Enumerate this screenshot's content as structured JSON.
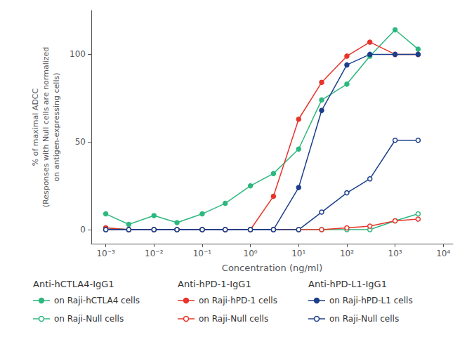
{
  "chart_data": {
    "type": "line",
    "xlabel": "Concentration (ng/ml)",
    "ylabel": "% of maximal ADCC\n(Responses with Null cells are normalized\non antigen-expressing cells)",
    "log": "x",
    "grid": false,
    "x": [
      0.001,
      0.003,
      0.01,
      0.03,
      0.1,
      0.3,
      1.0,
      3.0,
      10.0,
      30.0,
      100.0,
      300.0,
      1000.0,
      3000.0
    ],
    "xlim": [
      0.0005011872336272725,
      15848.931924611135
    ],
    "xticks": [
      {
        "value": 0.001,
        "label": "10⁻³"
      },
      {
        "value": 0.01,
        "label": "10⁻²"
      },
      {
        "value": 0.1,
        "label": "10⁻¹"
      },
      {
        "value": 1,
        "label": "10⁰"
      },
      {
        "value": 10,
        "label": "10¹"
      },
      {
        "value": 100,
        "label": "10²"
      },
      {
        "value": 1000,
        "label": "10³"
      },
      {
        "value": 10000,
        "label": "10⁴"
      }
    ],
    "ylim": [
      -8,
      125
    ],
    "yticks": [
      0,
      50,
      100
    ],
    "series": [
      {
        "name": "on Raji-hCTLA4 cells",
        "group": "Anti-hCTLA4-IgG1",
        "color": "#2db87e",
        "marker": "circle",
        "values": [
          9,
          3,
          8,
          4,
          9,
          15,
          25,
          32,
          46,
          74,
          83,
          99,
          114,
          103
        ]
      },
      {
        "name": "on Raji-Null cells",
        "group": "Anti-hCTLA4-IgG1",
        "color": "#2db87e",
        "marker": "open_circle",
        "values": [
          1,
          0,
          0,
          0,
          0,
          0,
          0,
          0,
          0,
          0,
          0,
          0,
          5,
          9
        ]
      },
      {
        "name": "on Raji-hPD-1 cells",
        "group": "Anti-hPD-1-IgG1",
        "color": "#e8342a",
        "marker": "circle",
        "values": [
          1,
          0,
          0,
          0,
          0,
          0,
          0,
          19,
          63,
          84,
          99,
          107,
          100,
          100
        ]
      },
      {
        "name": "on Raji-Null cells",
        "group": "Anti-hPD-1-IgG1",
        "color": "#e8342a",
        "marker": "open_circle",
        "values": [
          0,
          0,
          0,
          0,
          0,
          0,
          0,
          0,
          0,
          0,
          1,
          2,
          5,
          6
        ]
      },
      {
        "name": "on Raji-hPD-L1 cells",
        "group": "Anti-hPD-L1-IgG1",
        "color": "#1c3f8c",
        "marker": "circle",
        "values": [
          0,
          0,
          0,
          0,
          0,
          0,
          0,
          0,
          24,
          68,
          94,
          100,
          100,
          100
        ]
      },
      {
        "name": "on Raji-Null cells",
        "group": "Anti-hPD-L1-IgG1",
        "color": "#1c3f8c",
        "marker": "open_circle",
        "values": [
          0,
          0,
          0,
          0,
          0,
          0,
          0,
          0,
          0,
          10,
          21,
          29,
          51,
          51
        ]
      }
    ]
  }
}
